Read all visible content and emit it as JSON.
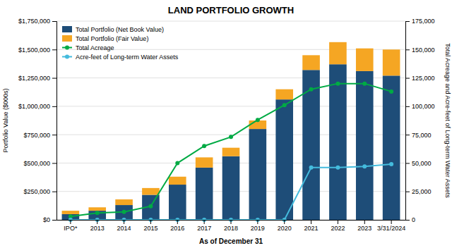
{
  "chart_data": {
    "type": "bar",
    "title": "LAND PORTFOLIO GROWTH",
    "xlabel": "As of December 31",
    "ylabel": "Portfolio Value ($000s)",
    "y2label": "Total Acreage and Acre-feet of Long-term Water Assets",
    "categories": [
      "IPO*",
      "2013",
      "2014",
      "2015",
      "2016",
      "2017",
      "2018",
      "2019",
      "2020",
      "2021",
      "2022",
      "2023",
      "3/31/2024"
    ],
    "stacked": true,
    "grid": true,
    "legend": "upper left",
    "series": [
      {
        "name": "Total Portfolio (Net Book Value)",
        "type": "bar",
        "color": "#1e4d78",
        "values": [
          50000,
          80000,
          130000,
          220000,
          310000,
          460000,
          560000,
          800000,
          1060000,
          1320000,
          1370000,
          1310000,
          1270000
        ]
      },
      {
        "name": "Total Portfolio (Fair Value)",
        "type": "bar",
        "color": "#f5a623",
        "values": [
          30000,
          30000,
          50000,
          60000,
          70000,
          90000,
          75000,
          75000,
          90000,
          130000,
          195000,
          200000,
          230000
        ]
      },
      {
        "name": "Total Acreage",
        "type": "line",
        "axis": "y2",
        "marker": "circle",
        "color": "#00aa44",
        "values": [
          3000,
          6000,
          7000,
          12000,
          50000,
          65000,
          73000,
          88000,
          101000,
          115000,
          120000,
          120000,
          113000
        ]
      },
      {
        "name": "Acre-feet of Long-term Water Assets",
        "type": "line",
        "axis": "y2",
        "marker": "circle",
        "color": "#44bbdd",
        "values": [
          0,
          0,
          0,
          0,
          0,
          0,
          0,
          0,
          0,
          46000,
          46000,
          47000,
          49000
        ]
      }
    ],
    "ylim": [
      0,
      1750000
    ],
    "yticks": [
      {
        "value": 0,
        "label": "$0"
      },
      {
        "value": 250000,
        "label": "$250,000"
      },
      {
        "value": 500000,
        "label": "$500,000"
      },
      {
        "value": 750000,
        "label": "$750,000"
      },
      {
        "value": 1000000,
        "label": "$1,000,000"
      },
      {
        "value": 1250000,
        "label": "$1,250,000"
      },
      {
        "value": 1500000,
        "label": "$1,500,000"
      },
      {
        "value": 1750000,
        "label": "$1,750,000"
      }
    ],
    "y2lim": [
      0,
      175000
    ],
    "y2ticks": [
      0,
      {
        "value": 25000,
        "label": "25,000"
      },
      {
        "value": 50000,
        "label": "50,000"
      },
      {
        "value": 75000,
        "label": "75,000"
      },
      {
        "value": 100000,
        "label": "100,000"
      },
      {
        "value": 125000,
        "label": "125,000"
      },
      {
        "value": 150000,
        "label": "150,000"
      },
      {
        "value": 175000,
        "label": "175,000"
      }
    ]
  }
}
